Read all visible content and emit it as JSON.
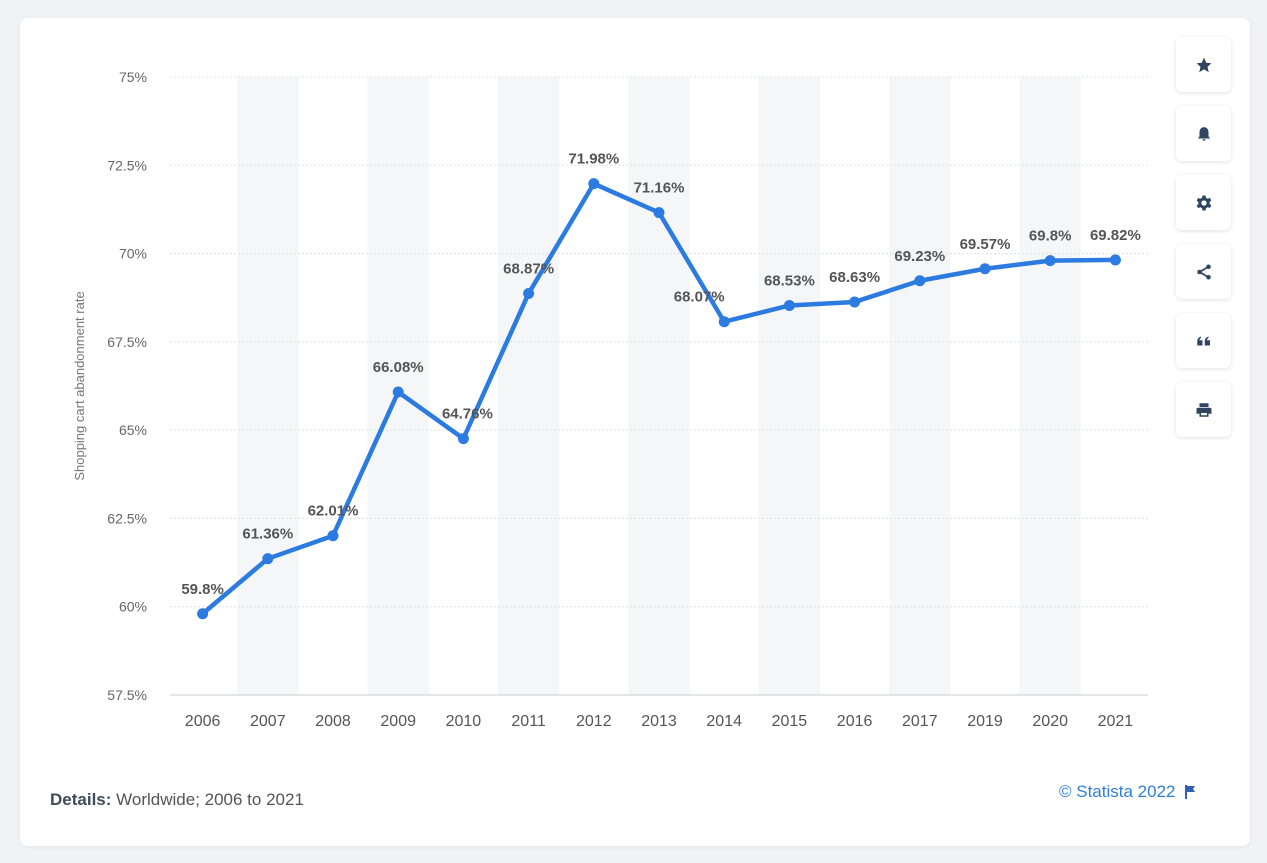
{
  "chart_data": {
    "type": "line",
    "title": "",
    "xlabel": "",
    "ylabel": "Shopping cart abandonment rate",
    "categories": [
      "2006",
      "2007",
      "2008",
      "2009",
      "2010",
      "2011",
      "2012",
      "2013",
      "2014",
      "2015",
      "2016",
      "2017",
      "2019",
      "2020",
      "2021"
    ],
    "values": [
      59.8,
      61.36,
      62.01,
      66.08,
      64.76,
      68.87,
      71.98,
      71.16,
      68.07,
      68.53,
      68.63,
      69.23,
      69.57,
      69.8,
      69.82
    ],
    "data_labels": [
      "59.8%",
      "61.36%",
      "62.01%",
      "66.08%",
      "64.76%",
      "68.87%",
      "71.98%",
      "71.16%",
      "68.07%",
      "68.53%",
      "68.63%",
      "69.23%",
      "69.57%",
      "69.8%",
      "69.82%"
    ],
    "ylim": [
      57.5,
      75
    ],
    "yticks": [
      57.5,
      60,
      62.5,
      65,
      67.5,
      70,
      72.5,
      75
    ],
    "ytick_labels": [
      "57.5%",
      "60%",
      "62.5%",
      "65%",
      "67.5%",
      "70%",
      "72.5%",
      "75%"
    ],
    "grid": true,
    "line_color": "#2b7be0",
    "legend": "none"
  },
  "toolbar": {
    "icons": [
      "star-icon",
      "bell-icon",
      "gear-icon",
      "share-icon",
      "quote-icon",
      "print-icon"
    ]
  },
  "footer": {
    "details_label": "Details:",
    "details_text": " Worldwide; 2006 to 2021",
    "credit": "© Statista 2022"
  }
}
